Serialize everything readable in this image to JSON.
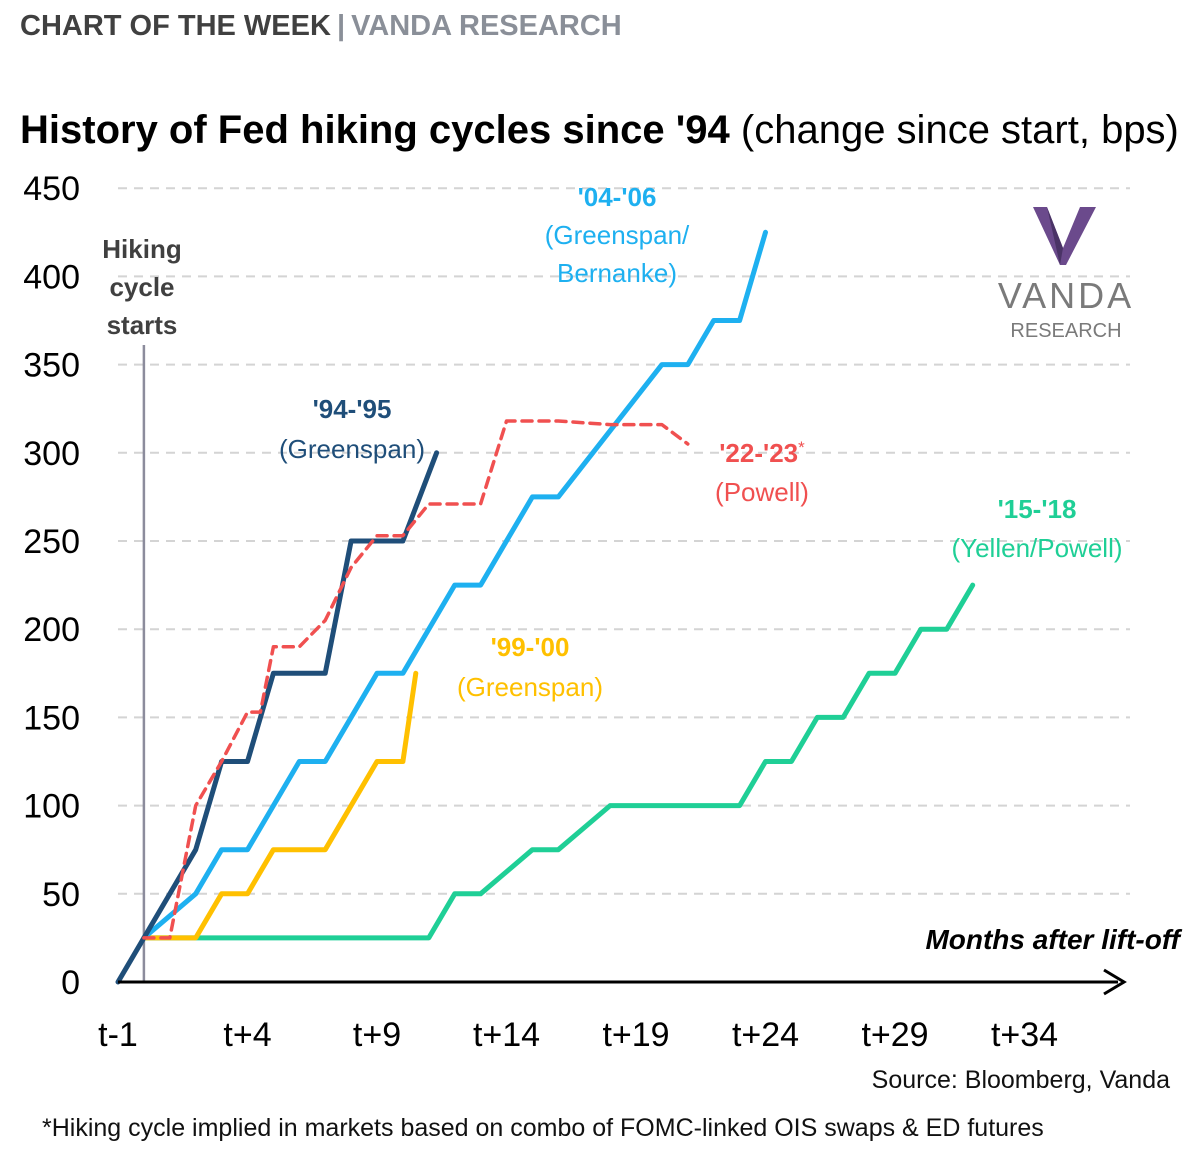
{
  "header": {
    "left": "CHART OF THE WEEK",
    "separator": "|",
    "right": "VANDA RESEARCH"
  },
  "title": {
    "bold": "History of Fed hiking cycles since '94",
    "rest": "(change since start, bps)"
  },
  "logo": {
    "name": "VANDA",
    "sub": "RESEARCH"
  },
  "footer": {
    "source": "Source: Bloomberg, Vanda",
    "footnote": "*Hiking cycle implied in markets based on combo of FOMC-linked OIS swaps & ED futures"
  },
  "colors": {
    "c9495": "#1f4e79",
    "c0406": "#1eb0f0",
    "c9900": "#ffc000",
    "c1518": "#1fcf96",
    "c2223": "#f05050",
    "vline": "#8c8c9c"
  },
  "chart_data": {
    "type": "line",
    "title": "History of Fed hiking cycles since '94 (change since start, bps)",
    "xlabel": "Months after lift-off",
    "ylabel": "",
    "xlim": [
      -1,
      38
    ],
    "ylim": [
      0,
      450
    ],
    "x_ticks": [
      {
        "value": -1,
        "label": "t-1"
      },
      {
        "value": 4,
        "label": "t+4"
      },
      {
        "value": 9,
        "label": "t+9"
      },
      {
        "value": 14,
        "label": "t+14"
      },
      {
        "value": 19,
        "label": "t+19"
      },
      {
        "value": 24,
        "label": "t+24"
      },
      {
        "value": 29,
        "label": "t+29"
      },
      {
        "value": 34,
        "label": "t+34"
      }
    ],
    "y_ticks": [
      0,
      50,
      100,
      150,
      200,
      250,
      300,
      350,
      400,
      450
    ],
    "grid": "horizontal-dashed",
    "annotation": {
      "x": 0,
      "text": [
        "Hiking",
        "cycle",
        "starts"
      ]
    },
    "series": [
      {
        "name": "'94-'95",
        "label": [
          "'94-'95",
          "(Greenspan)"
        ],
        "color": "#1f4e79",
        "dashed": false,
        "points": [
          [
            -1,
            0
          ],
          [
            0,
            25
          ],
          [
            2,
            75
          ],
          [
            3,
            125
          ],
          [
            4,
            125
          ],
          [
            5,
            175
          ],
          [
            6,
            175
          ],
          [
            7,
            175
          ],
          [
            8,
            250
          ],
          [
            9,
            250
          ],
          [
            10,
            250
          ],
          [
            11.3,
            300
          ]
        ]
      },
      {
        "name": "'99-'00",
        "label": [
          "'99-'00",
          "(Greenspan)"
        ],
        "color": "#ffc000",
        "dashed": false,
        "points": [
          [
            0,
            25
          ],
          [
            2,
            25
          ],
          [
            3,
            50
          ],
          [
            4,
            50
          ],
          [
            5,
            75
          ],
          [
            6,
            75
          ],
          [
            7,
            75
          ],
          [
            9,
            125
          ],
          [
            10,
            125
          ],
          [
            10.5,
            175
          ]
        ]
      },
      {
        "name": "'04-'06",
        "label": [
          "'04-'06",
          "(Greenspan/",
          "Bernanke)"
        ],
        "color": "#1eb0f0",
        "dashed": false,
        "points": [
          [
            0,
            25
          ],
          [
            2,
            50
          ],
          [
            3,
            75
          ],
          [
            4,
            75
          ],
          [
            6,
            125
          ],
          [
            7,
            125
          ],
          [
            9,
            175
          ],
          [
            10,
            175
          ],
          [
            12,
            225
          ],
          [
            13,
            225
          ],
          [
            15,
            275
          ],
          [
            16,
            275
          ],
          [
            20,
            350
          ],
          [
            21,
            350
          ],
          [
            22,
            375
          ],
          [
            23,
            375
          ],
          [
            24,
            425
          ]
        ]
      },
      {
        "name": "'15-'18",
        "label": [
          "'15-'18",
          "(Yellen/Powell)"
        ],
        "color": "#1fcf96",
        "dashed": false,
        "points": [
          [
            0,
            25
          ],
          [
            11,
            25
          ],
          [
            12,
            50
          ],
          [
            13,
            50
          ],
          [
            15,
            75
          ],
          [
            16,
            75
          ],
          [
            18,
            100
          ],
          [
            23,
            100
          ],
          [
            24,
            125
          ],
          [
            25,
            125
          ],
          [
            26,
            150
          ],
          [
            27,
            150
          ],
          [
            28,
            175
          ],
          [
            29,
            175
          ],
          [
            30,
            200
          ],
          [
            31,
            200
          ],
          [
            32,
            225
          ]
        ]
      },
      {
        "name": "'22-'23*",
        "label": [
          "'22-'23*",
          "(Powell)"
        ],
        "color": "#f05050",
        "dashed": true,
        "points": [
          [
            0,
            25
          ],
          [
            1,
            25
          ],
          [
            2,
            100
          ],
          [
            3,
            125
          ],
          [
            4,
            153
          ],
          [
            4.5,
            153
          ],
          [
            5,
            190
          ],
          [
            6,
            190
          ],
          [
            7,
            205
          ],
          [
            8,
            235
          ],
          [
            9,
            253
          ],
          [
            10,
            253
          ],
          [
            11,
            271
          ],
          [
            12,
            271
          ],
          [
            13,
            271
          ],
          [
            14,
            318
          ],
          [
            16,
            318
          ],
          [
            18,
            316
          ],
          [
            20,
            316
          ],
          [
            21,
            305
          ]
        ]
      }
    ]
  }
}
